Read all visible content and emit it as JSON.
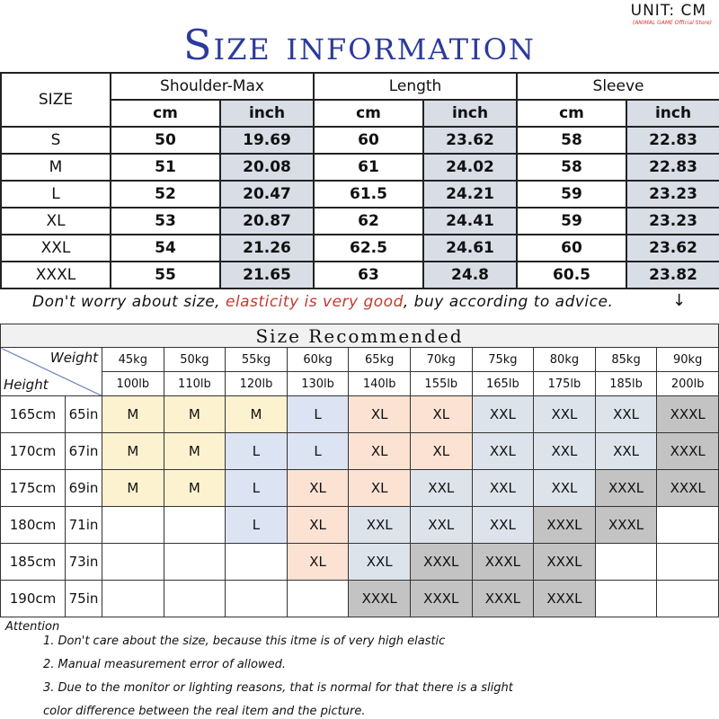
{
  "unit": {
    "label": "UNIT: CM",
    "sub": "(ANIMAL GAME Official Store)"
  },
  "title": "Size information",
  "size_table": {
    "size_header": "SIZE",
    "groups": [
      "Shoulder-Max",
      "Length",
      "Sleeve"
    ],
    "units": [
      "cm",
      "inch"
    ],
    "rows": [
      [
        "S",
        "50",
        "19.69",
        "60",
        "23.62",
        "58",
        "22.83"
      ],
      [
        "M",
        "51",
        "20.08",
        "61",
        "24.02",
        "58",
        "22.83"
      ],
      [
        "L",
        "52",
        "20.47",
        "61.5",
        "24.21",
        "59",
        "23.23"
      ],
      [
        "XL",
        "53",
        "20.87",
        "62",
        "24.41",
        "59",
        "23.23"
      ],
      [
        "XXL",
        "54",
        "21.26",
        "62.5",
        "24.61",
        "60",
        "23.62"
      ],
      [
        "XXXL",
        "55",
        "21.65",
        "63",
        "24.8",
        "60.5",
        "23.82"
      ]
    ]
  },
  "note": {
    "a": "Don't worry about size, ",
    "b": "elasticity is very good",
    "c": ", buy according to advice.",
    "arrow": "↓"
  },
  "recommend": {
    "title": "Size Recommended",
    "weight_label": "Weight",
    "height_label": "Height",
    "kg": [
      "45kg",
      "50kg",
      "55kg",
      "60kg",
      "65kg",
      "70kg",
      "75kg",
      "80kg",
      "85kg",
      "90kg"
    ],
    "lb": [
      "100lb",
      "110lb",
      "120lb",
      "130lb",
      "140lb",
      "155lb",
      "165lb",
      "175lb",
      "185lb",
      "200lb"
    ],
    "rows": [
      {
        "cm": "165cm",
        "in": "65in",
        "sizes": [
          "M",
          "M",
          "M",
          "L",
          "XL",
          "XL",
          "XXL",
          "XXL",
          "XXL",
          "XXXL"
        ]
      },
      {
        "cm": "170cm",
        "in": "67in",
        "sizes": [
          "M",
          "M",
          "L",
          "L",
          "XL",
          "XL",
          "XXL",
          "XXL",
          "XXL",
          "XXXL"
        ]
      },
      {
        "cm": "175cm",
        "in": "69in",
        "sizes": [
          "M",
          "M",
          "L",
          "XL",
          "XL",
          "XXL",
          "XXL",
          "XXL",
          "XXXL",
          "XXXL"
        ]
      },
      {
        "cm": "180cm",
        "in": "71in",
        "sizes": [
          "",
          "",
          "L",
          "XL",
          "XXL",
          "XXL",
          "XXL",
          "XXXL",
          "XXXL",
          ""
        ]
      },
      {
        "cm": "185cm",
        "in": "73in",
        "sizes": [
          "",
          "",
          "",
          "XL",
          "XXL",
          "XXXL",
          "XXXL",
          "XXXL",
          "",
          ""
        ]
      },
      {
        "cm": "190cm",
        "in": "75in",
        "sizes": [
          "",
          "",
          "",
          "",
          "XXXL",
          "XXXL",
          "XXXL",
          "XXXL",
          "",
          ""
        ]
      }
    ],
    "colors": {
      "M": "#fdf2cf",
      "L": "#dce3f2",
      "XL": "#fbe2d3",
      "XXL": "#dde3ea",
      "XXXL": "#c3c3c3"
    }
  },
  "attention": {
    "label": "Attention",
    "items": [
      "1. Don't care about the size, because this itme is of very high elastic",
      "2. Manual measurement error of allowed.",
      "3.  Due to the monitor or lighting reasons, that is normal for that there is a slight",
      "color difference between the real item and the picture."
    ]
  }
}
